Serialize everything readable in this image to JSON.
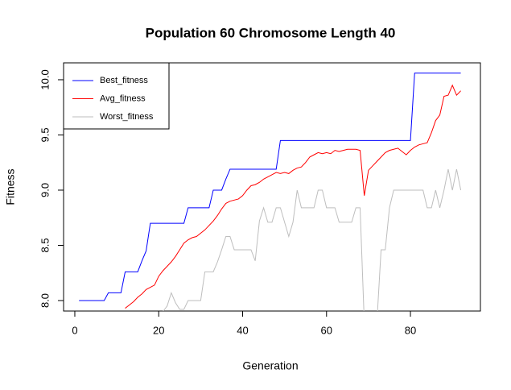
{
  "chart_data": {
    "type": "line",
    "title": "Population 60  Chromosome Length 40",
    "x_label": "Generation",
    "y_label": "Fitness",
    "x": [
      1,
      2,
      3,
      4,
      5,
      6,
      7,
      8,
      9,
      10,
      11,
      12,
      13,
      14,
      15,
      16,
      17,
      18,
      19,
      20,
      21,
      22,
      23,
      24,
      25,
      26,
      27,
      28,
      29,
      30,
      31,
      32,
      33,
      34,
      35,
      36,
      37,
      38,
      39,
      40,
      41,
      42,
      43,
      44,
      45,
      46,
      47,
      48,
      49,
      50,
      51,
      52,
      53,
      54,
      55,
      56,
      57,
      58,
      59,
      60,
      61,
      62,
      63,
      64,
      65,
      66,
      67,
      68,
      69,
      70,
      71,
      72,
      73,
      74,
      75,
      76,
      77,
      78,
      79,
      80,
      81,
      82,
      83,
      84,
      85,
      86,
      87,
      88,
      89,
      90,
      91,
      92
    ],
    "series": [
      {
        "name": "Best_fitness",
        "color": "#0000ff",
        "values": [
          8.0,
          8.0,
          8.0,
          8.0,
          8.0,
          8.0,
          8.0,
          8.07,
          8.07,
          8.07,
          8.07,
          8.26,
          8.26,
          8.26,
          8.26,
          8.36,
          8.45,
          8.7,
          8.7,
          8.7,
          8.7,
          8.7,
          8.7,
          8.7,
          8.7,
          8.7,
          8.84,
          8.84,
          8.84,
          8.84,
          8.84,
          8.84,
          9.0,
          9.0,
          9.0,
          9.1,
          9.19,
          9.19,
          9.19,
          9.19,
          9.19,
          9.19,
          9.19,
          9.19,
          9.19,
          9.19,
          9.19,
          9.19,
          9.45,
          9.45,
          9.45,
          9.45,
          9.45,
          9.45,
          9.45,
          9.45,
          9.45,
          9.45,
          9.45,
          9.45,
          9.45,
          9.45,
          9.45,
          9.45,
          9.45,
          9.45,
          9.45,
          9.45,
          9.45,
          9.45,
          9.45,
          9.45,
          9.45,
          9.45,
          9.45,
          9.45,
          9.45,
          9.45,
          9.45,
          9.45,
          10.06,
          10.06,
          10.06,
          10.06,
          10.06,
          10.06,
          10.06,
          10.06,
          10.06,
          10.06,
          10.06,
          10.06
        ]
      },
      {
        "name": "Avg_fitness",
        "color": "#ff0000",
        "values": [
          null,
          null,
          null,
          null,
          null,
          null,
          null,
          null,
          null,
          null,
          null,
          7.93,
          7.96,
          7.99,
          8.03,
          8.06,
          8.1,
          8.12,
          8.14,
          8.22,
          8.27,
          8.31,
          8.35,
          8.4,
          8.46,
          8.52,
          8.55,
          8.57,
          8.58,
          8.61,
          8.64,
          8.68,
          8.72,
          8.77,
          8.83,
          8.88,
          8.9,
          8.91,
          8.92,
          8.95,
          9.0,
          9.04,
          9.05,
          9.07,
          9.1,
          9.12,
          9.14,
          9.16,
          9.15,
          9.16,
          9.15,
          9.18,
          9.2,
          9.21,
          9.25,
          9.3,
          9.32,
          9.34,
          9.33,
          9.34,
          9.33,
          9.36,
          9.35,
          9.36,
          9.37,
          9.37,
          9.37,
          9.36,
          8.95,
          9.18,
          9.22,
          9.26,
          9.3,
          9.34,
          9.36,
          9.37,
          9.38,
          9.35,
          9.32,
          9.36,
          9.39,
          9.41,
          9.42,
          9.43,
          9.52,
          9.63,
          9.68,
          9.85,
          9.86,
          9.95,
          9.86,
          9.9
        ]
      },
      {
        "name": "Worst_fitness",
        "color": "#bebebe",
        "values": [
          null,
          null,
          null,
          null,
          null,
          null,
          null,
          null,
          null,
          null,
          null,
          null,
          null,
          null,
          null,
          null,
          null,
          null,
          null,
          null,
          7.9,
          7.95,
          8.07,
          7.98,
          7.92,
          7.92,
          8.0,
          8.0,
          8.0,
          8.0,
          8.26,
          8.26,
          8.26,
          8.35,
          8.46,
          8.58,
          8.58,
          8.46,
          8.46,
          8.46,
          8.46,
          8.46,
          8.36,
          8.72,
          8.84,
          8.71,
          8.71,
          8.84,
          8.84,
          8.71,
          8.58,
          8.71,
          9.0,
          8.84,
          8.84,
          8.84,
          8.84,
          9.0,
          9.0,
          8.84,
          8.84,
          8.84,
          8.71,
          8.71,
          8.71,
          8.71,
          8.84,
          8.84,
          7.8,
          7.8,
          7.8,
          7.8,
          8.46,
          8.46,
          8.84,
          9.0,
          9.0,
          9.0,
          9.0,
          9.0,
          9.0,
          9.0,
          9.0,
          8.84,
          8.84,
          9.0,
          8.84,
          9.0,
          9.19,
          9.0,
          9.19,
          9.0
        ]
      }
    ],
    "xlim": [
      -2.68,
      96.68
    ],
    "xticks": [
      0,
      20,
      40,
      60,
      80
    ],
    "ylim": [
      7.905,
      10.153
    ],
    "yticks": [
      {
        "value": 8,
        "label": "8.0"
      },
      {
        "value": 8.5,
        "label": "8.5"
      },
      {
        "value": 9,
        "label": "9.0"
      },
      {
        "value": 9.5,
        "label": "9.5"
      },
      {
        "value": 10,
        "label": "10.0"
      }
    ],
    "legend": "topleft",
    "grid": false
  }
}
